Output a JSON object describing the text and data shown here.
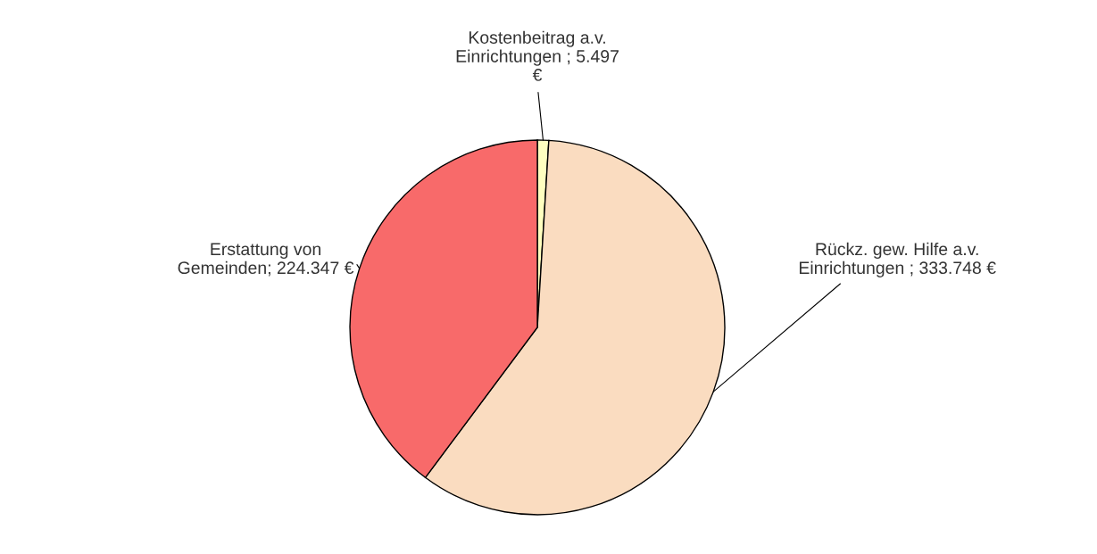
{
  "chart_data": {
    "type": "pie",
    "categories": [
      "Kostenbeitrag a.v.\nEinrichtungen",
      "Rückz. gew. Hilfe a.v.\nEinrichtungen",
      "Erstattung von\nGemeinden"
    ],
    "values": [
      5497,
      333748,
      224347
    ],
    "value_labels": [
      "5.497\n€",
      "333.748 €",
      "224.347 €"
    ],
    "colors": [
      "#ffffc0",
      "#fadcc0",
      "#f86a6a"
    ],
    "legend": false
  }
}
